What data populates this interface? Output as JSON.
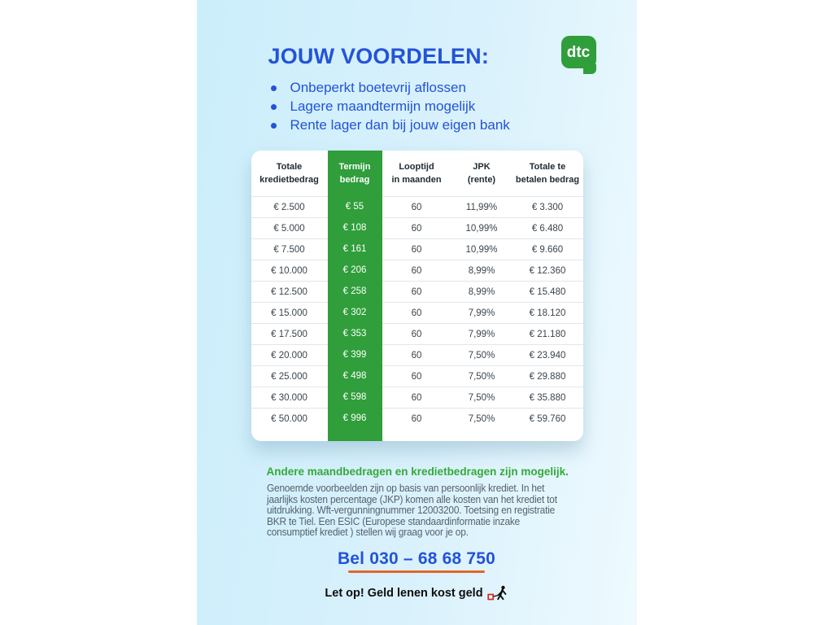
{
  "page": {
    "title": "JOUW VOORDELEN:",
    "bullets": [
      "Onbeperkt boetevrij aflossen",
      "Lagere maandtermijn mogelijk",
      "Rente lager dan bij jouw eigen bank"
    ],
    "logo_text": "dtc"
  },
  "table": {
    "headers": [
      [
        "Totale",
        "kredietbedrag"
      ],
      [
        "Termijn",
        "bedrag"
      ],
      [
        "Looptijd",
        "in maanden"
      ],
      [
        "JPK",
        "(rente)"
      ],
      [
        "Totale te",
        "betalen bedrag"
      ]
    ],
    "rows": [
      [
        "€ 2.500",
        "€ 55",
        "60",
        "11,99%",
        "€ 3.300"
      ],
      [
        "€ 5.000",
        "€ 108",
        "60",
        "10,99%",
        "€ 6.480"
      ],
      [
        "€ 7.500",
        "€ 161",
        "60",
        "10,99%",
        "€ 9.660"
      ],
      [
        "€ 10.000",
        "€ 206",
        "60",
        "8,99%",
        "€ 12.360"
      ],
      [
        "€ 12.500",
        "€ 258",
        "60",
        "8,99%",
        "€ 15.480"
      ],
      [
        "€ 15.000",
        "€ 302",
        "60",
        "7,99%",
        "€ 18.120"
      ],
      [
        "€ 17.500",
        "€ 353",
        "60",
        "7,99%",
        "€ 21.180"
      ],
      [
        "€ 20.000",
        "€ 399",
        "60",
        "7,50%",
        "€ 23.940"
      ],
      [
        "€ 25.000",
        "€ 498",
        "60",
        "7,50%",
        "€ 29.880"
      ],
      [
        "€ 30.000",
        "€ 598",
        "60",
        "7,50%",
        "€ 35.880"
      ],
      [
        "€ 50.000",
        "€ 996",
        "60",
        "7,50%",
        "€ 59.760"
      ]
    ]
  },
  "notes": {
    "highlight": "Andere maandbedragen en kredietbedragen zijn mogelijk.",
    "body": "Genoemde voorbeelden zijn op basis van persoonlijk krediet. In het\njaarlijks kosten percentage (JKP) komen alle kosten van het krediet tot\nuitdrukking. Wft-vergunningnummer 12003200. Toetsing en registratie\nBKR te Tiel. Een ESIC (Europese standaardinformatie inzake\nconsumptief krediet ) stellen wij graag voor je op."
  },
  "contact": {
    "phone_label": "Bel 030 – 68 68 750"
  },
  "warning": {
    "label": "Let op! Geld lenen kost geld"
  },
  "colors": {
    "brand_blue": "#2353d8",
    "brand_green": "#2f9e3b",
    "highlight_green": "#35a93a",
    "accent_orange": "#e2662a"
  }
}
